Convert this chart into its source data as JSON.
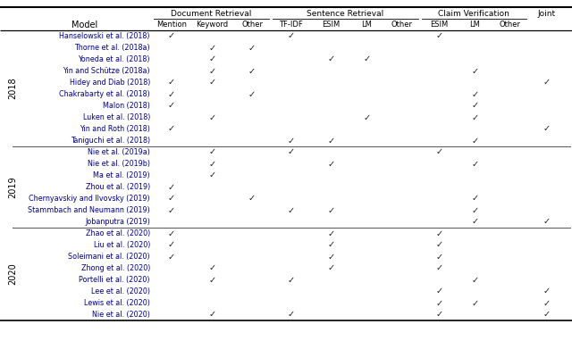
{
  "columns": [
    "Mention",
    "Keyword",
    "Other",
    "TF-IDF",
    "ESIM",
    "LM",
    "Other",
    "ESIM",
    "LM",
    "Other",
    ""
  ],
  "col_groups": [
    {
      "label": "Document Retrieval",
      "start": 0,
      "end": 2
    },
    {
      "label": "Sentence Retrieval",
      "start": 3,
      "end": 6
    },
    {
      "label": "Claim Verification",
      "start": 7,
      "end": 9
    },
    {
      "label": "Joint",
      "start": 10,
      "end": 10
    }
  ],
  "models": [
    "Hanselowski et al. (2018)",
    "Thorne et al. (2018a)",
    "Yoneda et al. (2018)",
    "Yin and Schütze (2018a)",
    "Hidey and Diab (2018)",
    "Chakrabarty et al. (2018)",
    "Malon (2018)",
    "Luken et al. (2018)",
    "Yin and Roth (2018)",
    "Taniguchi et al. (2018)",
    "Nie et al. (2019a)",
    "Nie et al. (2019b)",
    "Ma et al. (2019)",
    "Zhou et al. (2019)",
    "Chernyavskiy and Ilvovsky (2019)",
    "Stammbach and Neumann (2019)",
    "Jobanputra (2019)",
    "Zhao et al. (2020)",
    "Liu et al. (2020)",
    "Soleimani et al. (2020)",
    "Zhong et al. (2020)",
    "Portelli et al. (2020)",
    "Lee et al. (2020)",
    "Lewis et al. (2020)",
    "Nie et al. (2020)"
  ],
  "checks": [
    [
      1,
      0,
      0,
      1,
      0,
      0,
      0,
      1,
      0,
      0,
      0
    ],
    [
      0,
      1,
      1,
      0,
      0,
      0,
      0,
      0,
      0,
      0,
      0
    ],
    [
      0,
      1,
      0,
      0,
      1,
      1,
      0,
      0,
      0,
      0,
      0
    ],
    [
      0,
      1,
      1,
      0,
      0,
      0,
      0,
      0,
      1,
      0,
      0
    ],
    [
      1,
      1,
      0,
      0,
      0,
      0,
      0,
      0,
      0,
      0,
      1
    ],
    [
      1,
      0,
      1,
      0,
      0,
      0,
      0,
      0,
      1,
      0,
      0
    ],
    [
      1,
      0,
      0,
      0,
      0,
      0,
      0,
      0,
      1,
      0,
      0
    ],
    [
      0,
      1,
      0,
      0,
      0,
      1,
      0,
      0,
      1,
      0,
      0
    ],
    [
      1,
      0,
      0,
      0,
      0,
      0,
      0,
      0,
      0,
      0,
      1
    ],
    [
      0,
      0,
      0,
      1,
      1,
      0,
      0,
      0,
      1,
      0,
      0
    ],
    [
      0,
      1,
      0,
      1,
      0,
      0,
      0,
      1,
      0,
      0,
      0
    ],
    [
      0,
      1,
      0,
      0,
      1,
      0,
      0,
      0,
      1,
      0,
      0
    ],
    [
      0,
      1,
      0,
      0,
      0,
      0,
      0,
      0,
      0,
      0,
      0
    ],
    [
      1,
      0,
      0,
      0,
      0,
      0,
      0,
      0,
      0,
      0,
      0
    ],
    [
      1,
      0,
      1,
      0,
      0,
      0,
      0,
      0,
      1,
      0,
      0
    ],
    [
      1,
      0,
      0,
      1,
      1,
      0,
      0,
      0,
      1,
      0,
      0
    ],
    [
      0,
      0,
      0,
      0,
      0,
      0,
      0,
      0,
      1,
      0,
      1
    ],
    [
      1,
      0,
      0,
      0,
      1,
      0,
      0,
      1,
      0,
      0,
      0
    ],
    [
      1,
      0,
      0,
      0,
      1,
      0,
      0,
      1,
      0,
      0,
      0
    ],
    [
      1,
      0,
      0,
      0,
      1,
      0,
      0,
      1,
      0,
      0,
      0
    ],
    [
      0,
      1,
      0,
      0,
      1,
      0,
      0,
      1,
      0,
      0,
      0
    ],
    [
      0,
      1,
      0,
      1,
      0,
      0,
      0,
      0,
      1,
      0,
      0
    ],
    [
      0,
      0,
      0,
      0,
      0,
      0,
      0,
      1,
      0,
      0,
      1
    ],
    [
      0,
      0,
      0,
      0,
      0,
      0,
      0,
      1,
      1,
      0,
      1
    ],
    [
      0,
      1,
      0,
      1,
      0,
      0,
      0,
      1,
      0,
      0,
      1
    ]
  ],
  "year_groups": [
    {
      "year": "2018",
      "start": 0,
      "end": 9
    },
    {
      "year": "2019",
      "start": 10,
      "end": 16
    },
    {
      "year": "2020",
      "start": 17,
      "end": 24
    }
  ],
  "text_color": "#00008B",
  "check_color": "#1a1a1a",
  "header_color": "#000000",
  "bg_color": "#ffffff"
}
